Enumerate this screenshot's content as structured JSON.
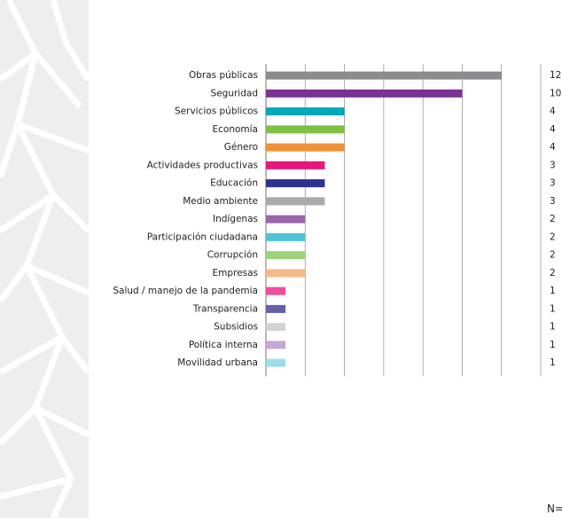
{
  "chart_data": {
    "type": "bar",
    "orientation": "horizontal",
    "categories": [
      "Obras públicas",
      "Seguridad",
      "Servicios públicos",
      "Economía",
      "Género",
      "Actividades productivas",
      "Educación",
      "Medio ambiente",
      "Indígenas",
      "Participación ciudadana",
      "Corrupción",
      "Empresas",
      "Salud / manejo de la pandemia",
      "Transparencia",
      "Subsidios",
      "Política interna",
      "Movilidad urbana"
    ],
    "values": [
      12,
      10,
      4,
      4,
      4,
      3,
      3,
      3,
      2,
      2,
      2,
      2,
      1,
      1,
      1,
      1,
      1
    ],
    "colors": [
      "#8a8c8e",
      "#7b3294",
      "#00a9b5",
      "#7dc243",
      "#f0913a",
      "#e8177d",
      "#2e3192",
      "#a7a9ac",
      "#9966aa",
      "#4dc3d6",
      "#9fd27c",
      "#f5b98a",
      "#ee4d9b",
      "#6262a8",
      "#d1d3d4",
      "#c4a8d6",
      "#9ddde8"
    ],
    "xlim": [
      0,
      14
    ],
    "xticks": [
      0,
      2,
      4,
      6,
      8,
      10,
      12,
      14
    ],
    "grid": true,
    "note": "N="
  }
}
